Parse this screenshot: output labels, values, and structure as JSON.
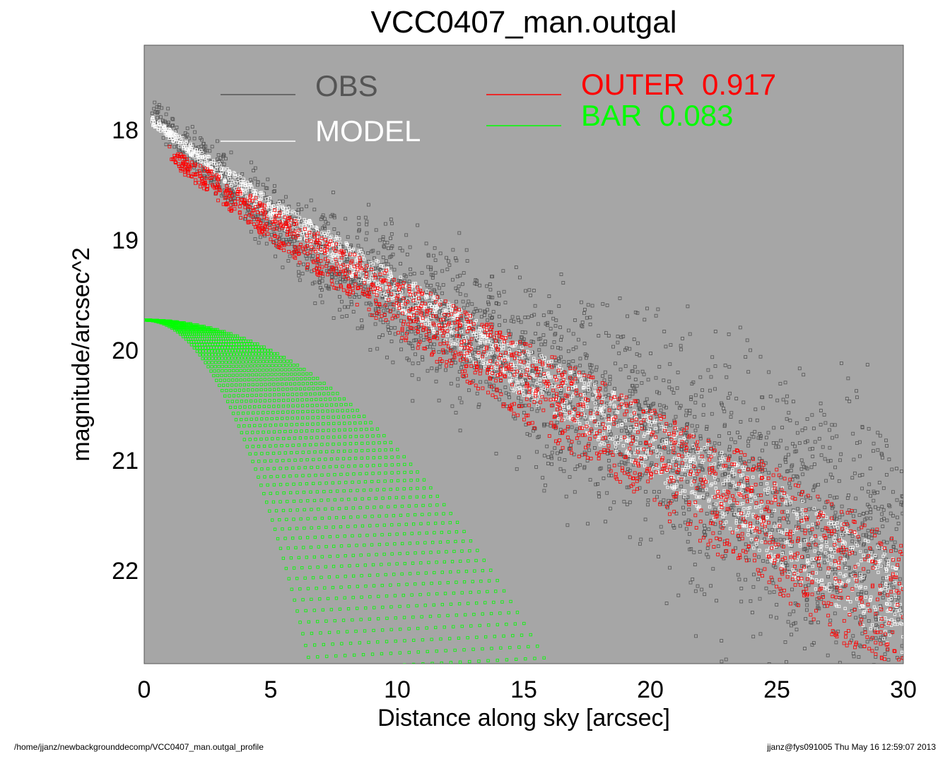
{
  "chart_data": {
    "type": "scatter",
    "title": "VCC0407_man.outgal",
    "xlabel": "Distance along sky [arcsec]",
    "ylabel": "magnitude/arcsec^2",
    "xlim": [
      0,
      30
    ],
    "ylim": [
      22.8,
      17.4
    ],
    "y_inverted": true,
    "xticks": [
      "0",
      "5",
      "10",
      "15",
      "20",
      "25",
      "30"
    ],
    "yticks": [
      "18",
      "19",
      "20",
      "21",
      "22"
    ],
    "background": "#a6a6a6",
    "grid": false,
    "legend_placement": "top",
    "series": [
      {
        "name": "OBS",
        "color": "#555555",
        "description_points": [
          [
            0.3,
            18.0
          ],
          [
            5,
            18.9
          ],
          [
            10,
            19.6
          ],
          [
            15,
            20.2
          ],
          [
            20,
            20.8
          ],
          [
            25,
            21.5
          ],
          [
            30,
            22.1
          ]
        ]
      },
      {
        "name": "MODEL",
        "color": "#ffffff",
        "description_points": [
          [
            0.3,
            18.05
          ],
          [
            5,
            18.8
          ],
          [
            10,
            19.5
          ],
          [
            15,
            20.2
          ],
          [
            20,
            20.8
          ],
          [
            25,
            21.5
          ],
          [
            30,
            22.2
          ]
        ]
      },
      {
        "name": "OUTER",
        "value_label": "0.917",
        "color": "#ff0000",
        "description_points": [
          [
            1,
            18.35
          ],
          [
            5,
            18.95
          ],
          [
            10,
            19.65
          ],
          [
            15,
            20.3
          ],
          [
            20,
            20.95
          ],
          [
            25,
            21.6
          ],
          [
            30,
            22.3
          ]
        ]
      },
      {
        "name": "BAR",
        "value_label": "0.083",
        "color": "#00ff00",
        "description_points": [
          [
            0,
            19.8
          ],
          [
            2.5,
            19.85
          ],
          [
            5,
            20.05
          ],
          [
            7.5,
            20.4
          ],
          [
            10,
            20.85
          ],
          [
            12.5,
            21.5
          ],
          [
            15,
            22.3
          ],
          [
            15.8,
            22.8
          ]
        ]
      }
    ]
  },
  "footer": {
    "path": "/home/jjanz/newbackgrounddecomp/VCC0407_man.outgal_profile",
    "stamp": "jjanz@fys091005  Thu May 16 12:59:07 2013"
  }
}
